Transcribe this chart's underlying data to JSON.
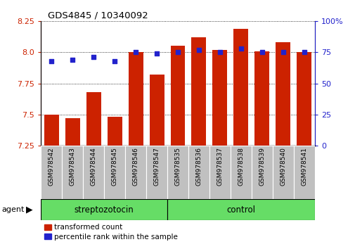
{
  "title": "GDS4845 / 10340092",
  "samples": [
    "GSM978542",
    "GSM978543",
    "GSM978544",
    "GSM978545",
    "GSM978546",
    "GSM978547",
    "GSM978535",
    "GSM978536",
    "GSM978537",
    "GSM978538",
    "GSM978539",
    "GSM978540",
    "GSM978541"
  ],
  "transformed_count": [
    7.5,
    7.47,
    7.68,
    7.48,
    8.0,
    7.82,
    8.05,
    8.12,
    8.02,
    8.19,
    8.01,
    8.08,
    8.0
  ],
  "percentile_rank": [
    68,
    69,
    71,
    68,
    75,
    74,
    75,
    77,
    75,
    78,
    75,
    75,
    75
  ],
  "group_labels": [
    "streptozotocin",
    "control"
  ],
  "group_counts": [
    6,
    7
  ],
  "ylim_left": [
    7.25,
    8.25
  ],
  "ylim_right": [
    0,
    100
  ],
  "yticks_left": [
    7.25,
    7.5,
    7.75,
    8.0,
    8.25
  ],
  "yticks_right": [
    0,
    25,
    50,
    75,
    100
  ],
  "bar_color": "#CC2200",
  "dot_color": "#2222CC",
  "bg_xticklabels": "#C0C0C0",
  "bg_group": "#66DD66",
  "agent_label": "agent",
  "legend_items": [
    "transformed count",
    "percentile rank within the sample"
  ]
}
